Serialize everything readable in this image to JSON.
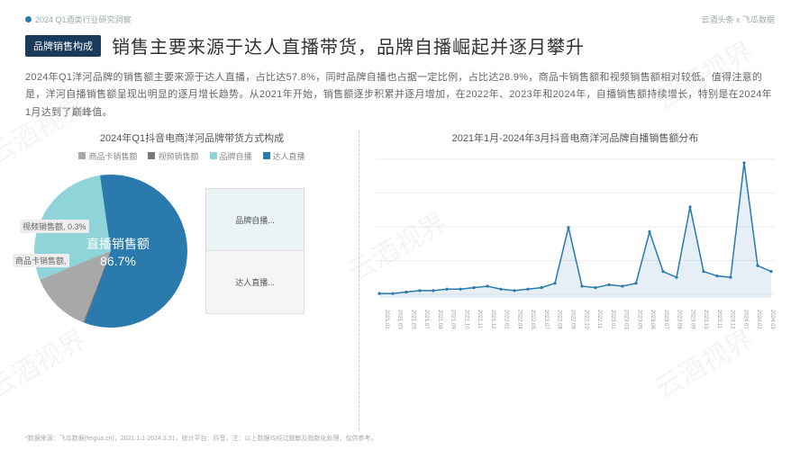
{
  "header": {
    "left": "2024 Q1酒类行业研究洞察",
    "right": "云酒头条 x 飞瓜数据"
  },
  "badge": "品牌销售构成",
  "title": "销售主要来源于达人直播带货，品牌自播崛起并逐月攀升",
  "body": "2024年Q1洋河品牌的销售额主要来源于达人直播，占比达57.8%，同时品牌自播也占据一定比例，占比达28.9%，商品卡销售额和视频销售额相对较低。值得注意的是，洋河自播销售额呈现出明显的逐月增长趋势。从2021年开始，销售额逐步积累并逐月增加，在2022年、2023年和2024年，自播销售额持续增长，特别是在2024年1月达到了巅峰值。",
  "pie": {
    "title": "2024年Q1抖音电商洋河品牌带货方式构成",
    "legend": [
      {
        "label": "商品卡销售额",
        "color": "#a8a8a8"
      },
      {
        "label": "视频销售额",
        "color": "#7a7a7a"
      },
      {
        "label": "品牌自播",
        "color": "#8fd4d9"
      },
      {
        "label": "达人直播",
        "color": "#2a7aad"
      }
    ],
    "slices": {
      "daren": {
        "pct": 57.8,
        "color": "#2a7aad"
      },
      "zibo": {
        "pct": 28.9,
        "color": "#8fd4d9"
      },
      "shangpin": {
        "pct": 13.0,
        "color": "#a8a8a8"
      },
      "shipin": {
        "pct": 0.3,
        "color": "#7a7a7a"
      }
    },
    "center_label": "直播销售额",
    "center_value": "86.7%",
    "callout1": "视频销售额, 0.3%",
    "callout2": "商品卡销售额,",
    "stack": [
      {
        "label": "品牌自播...",
        "color": "#eaf4f5"
      },
      {
        "label": "达人直播...",
        "color": "#f5f5f5"
      }
    ]
  },
  "line": {
    "title": "2021年1月-2024年3月抖音电商洋河品牌自播销售额分布",
    "color": "#2a7aad",
    "fill": "rgba(42,122,173,0.12)",
    "grid_color": "#eeeeee",
    "months": [
      "2021.01",
      "2021.03",
      "2021.05",
      "2021.07",
      "2021.08",
      "2021.09",
      "2021.10",
      "2021.11",
      "2021.12",
      "2022.02",
      "2022.04",
      "2022.05",
      "2022.07",
      "2022.08",
      "2022.09",
      "2022.10",
      "2022.11",
      "2023.01",
      "2023.03",
      "2023.05",
      "2023.06",
      "2023.07",
      "2023.08",
      "2023.09",
      "2023.10",
      "2023.11",
      "2023.12",
      "2024.01",
      "2024.02",
      "2024.03"
    ],
    "values": [
      3,
      3,
      4,
      5,
      5,
      6,
      6,
      7,
      8,
      6,
      5,
      6,
      7,
      10,
      48,
      8,
      7,
      9,
      8,
      10,
      45,
      18,
      14,
      62,
      18,
      15,
      14,
      92,
      22,
      18
    ]
  },
  "footer": "*数据来源：飞瓜数据(feigua.cn)，2021.1.1-2024.3.31，统计平台：抖音。注：以上数据均经过脱敏及指数化处理，仅供参考。",
  "watermark": "云酒视界"
}
